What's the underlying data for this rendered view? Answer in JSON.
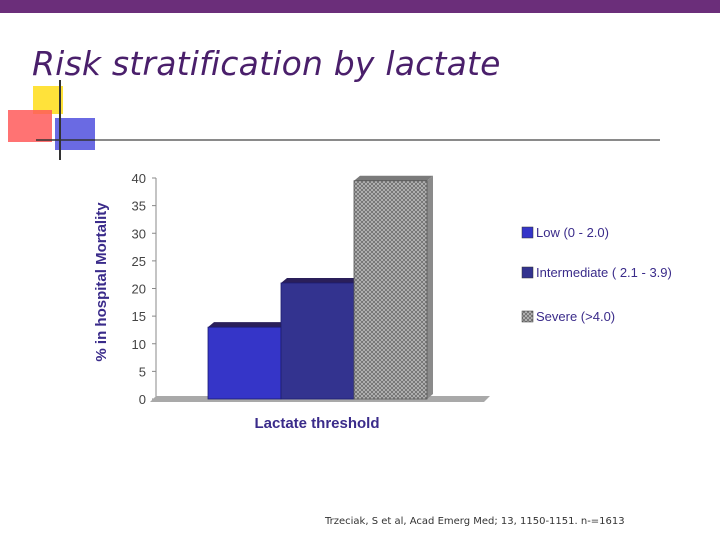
{
  "slide": {
    "title": "Risk stratification by lactate",
    "citation": "Trzeciak, S et al, Acad Emerg Med; 13, 1150-1151.  n-=1613",
    "accent_color": "#6b2e7a"
  },
  "chart_data": {
    "type": "bar",
    "title": "",
    "xlabel": "Lactate threshold",
    "ylabel": "% in hospital Mortality",
    "ylim": [
      0,
      40
    ],
    "yticks": [
      0,
      5,
      10,
      15,
      20,
      25,
      30,
      35,
      40
    ],
    "grid": false,
    "legend_position": "right",
    "series": [
      {
        "name": "Low (0 - 2.0)",
        "value": 13,
        "color": "#3535c8",
        "pattern": "solid"
      },
      {
        "name": "Intermediate ( 2.1 - 3.9)",
        "value": 21,
        "color": "#33338f",
        "pattern": "solid"
      },
      {
        "name": "Severe (>4.0)",
        "value": 39.5,
        "color": "#9a9a9a",
        "pattern": "hatched"
      }
    ]
  }
}
